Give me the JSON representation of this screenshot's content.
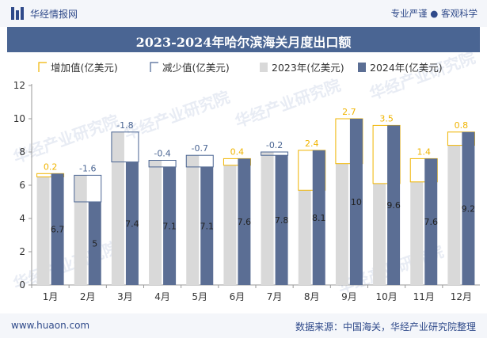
{
  "header": {
    "brand": "华经情报网",
    "tagline": "专业严谨 ● 客观科学"
  },
  "footer": {
    "url": "www.huaon.com",
    "source": "数据来源：中国海关，华经产业研究院整理"
  },
  "colors": {
    "y2023": "#d9d9d9",
    "y2024": "#5b6e94",
    "increase": "#f0b400",
    "decrease": "#4a6593",
    "title_bg": "#4a6593"
  },
  "chart_data": {
    "type": "bar",
    "title": "2023-2024年哈尔滨海关月度出口额",
    "categories": [
      "1月",
      "2月",
      "3月",
      "4月",
      "5月",
      "6月",
      "7月",
      "8月",
      "9月",
      "10月",
      "11月",
      "12月"
    ],
    "series": [
      {
        "name": "2023年(亿美元)",
        "values": [
          6.5,
          6.6,
          9.2,
          7.5,
          7.8,
          7.2,
          8.0,
          5.7,
          7.3,
          6.1,
          6.2,
          8.4
        ]
      },
      {
        "name": "2024年(亿美元)",
        "values": [
          6.7,
          5.0,
          7.4,
          7.1,
          7.1,
          7.6,
          7.8,
          8.1,
          10.0,
          9.6,
          7.6,
          9.2
        ]
      }
    ],
    "change_series": [
      {
        "name": "增加值(亿美元)",
        "kind": "increase"
      },
      {
        "name": "减少值(亿美元)",
        "kind": "decrease"
      }
    ],
    "bar_labels_2024": [
      "6.7",
      "5",
      "7.4",
      "7.1",
      "7.1",
      "7.6",
      "7.8",
      "8.1",
      "10",
      "9.6",
      "7.6",
      "9.2"
    ],
    "change_labels": [
      "0.2",
      "-1.6",
      "-1.8",
      "-0.4",
      "-0.7",
      "0.4",
      "-0.2",
      "2.4",
      "2.7",
      "3.5",
      "1.4",
      "0.8"
    ],
    "change_values": [
      0.2,
      -1.6,
      -1.8,
      -0.4,
      -0.7,
      0.4,
      -0.2,
      2.4,
      2.7,
      3.5,
      1.4,
      0.8
    ],
    "ylim": [
      0,
      12
    ],
    "yticks": [
      0,
      2,
      4,
      6,
      8,
      10,
      12
    ],
    "ytick_labels": [
      "0",
      "2",
      "4",
      "6",
      "8",
      "10",
      "12"
    ],
    "legend_position": "top"
  },
  "watermark": "华经产业研究院"
}
